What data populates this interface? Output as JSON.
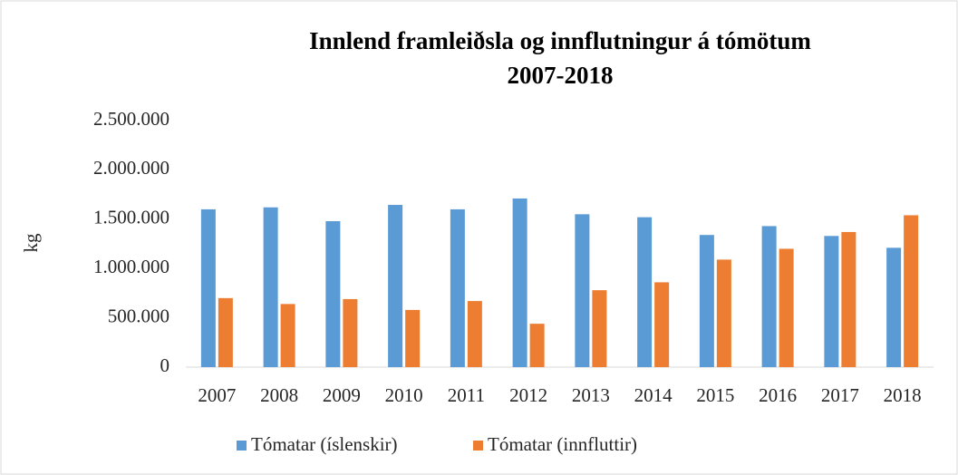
{
  "chart_data": {
    "type": "bar",
    "title": [
      "Innlend framleiðsla og innflutningur á tómötum",
      "2007-2018"
    ],
    "y_label": "kg",
    "categories": [
      "2007",
      "2008",
      "2009",
      "2010",
      "2011",
      "2012",
      "2013",
      "2014",
      "2015",
      "2016",
      "2017",
      "2018"
    ],
    "series": [
      {
        "name": "Tómatar (íslenskir)",
        "color": "#5b9bd5",
        "values": [
          1600000,
          1620000,
          1480000,
          1645000,
          1600000,
          1710000,
          1550000,
          1520000,
          1340000,
          1430000,
          1330000,
          1210000
        ]
      },
      {
        "name": "Tómatar (innfluttir)",
        "color": "#ed7d31",
        "values": [
          700000,
          640000,
          690000,
          580000,
          670000,
          440000,
          780000,
          860000,
          1090000,
          1200000,
          1370000,
          1540000
        ]
      }
    ],
    "ylim": [
      0,
      2500000
    ],
    "yticks": [
      0,
      {
        "value": 500000,
        "label": "500.000"
      },
      {
        "value": 1000000,
        "label": "1.000.000"
      },
      {
        "value": 1500000,
        "label": "1.500.000"
      },
      {
        "value": 2000000,
        "label": "2.000.000"
      },
      {
        "value": 2500000,
        "label": "2.500.000"
      }
    ],
    "grid": false,
    "legend": "bottom"
  }
}
